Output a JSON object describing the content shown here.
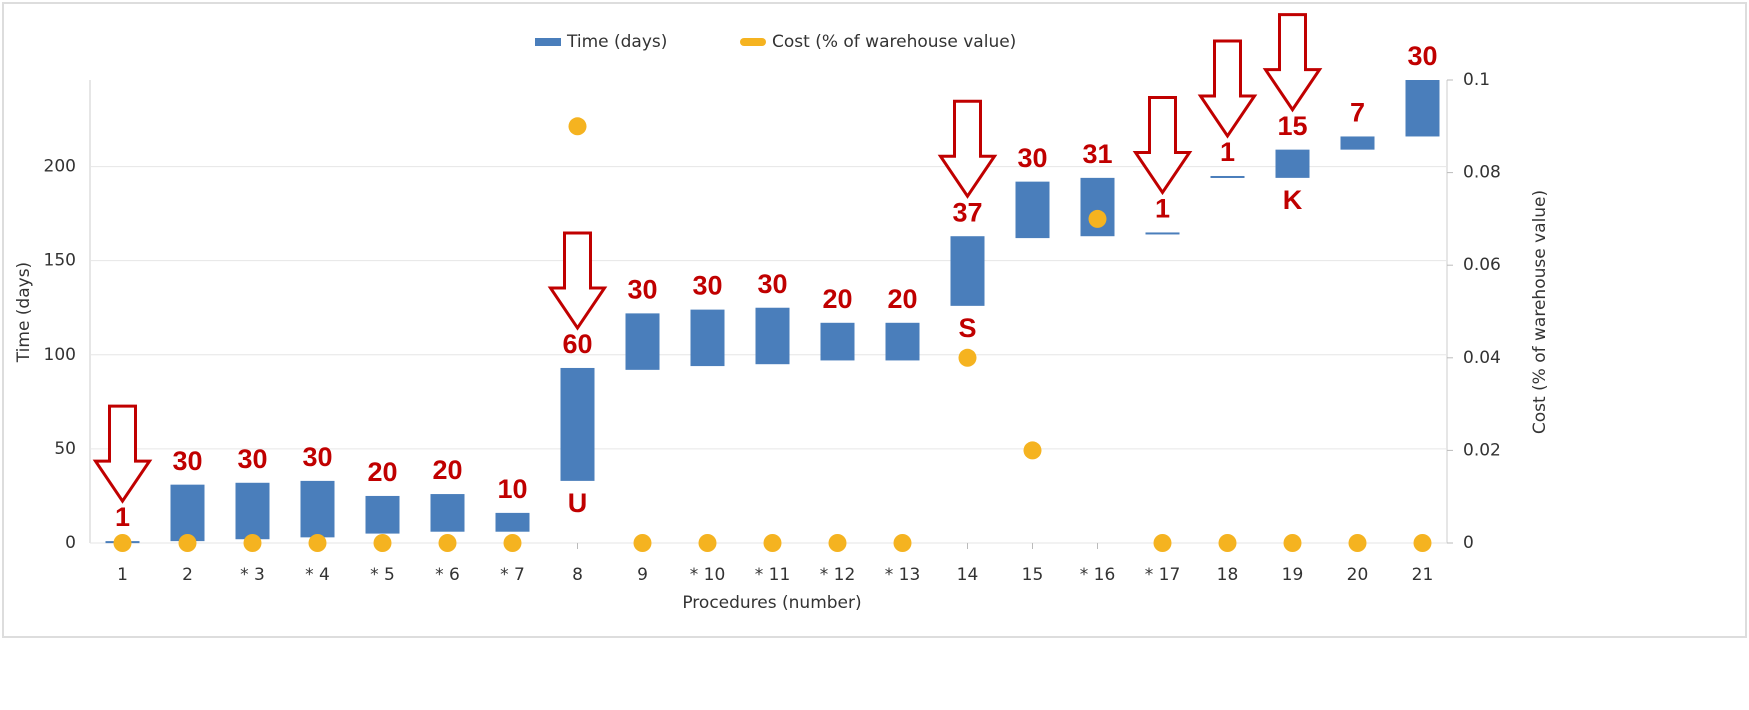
{
  "chart_data": {
    "type": "floating-bar",
    "x_label": "Procedures (number)",
    "y_label": "Time (days)",
    "y2_label": "Cost (% of warehouse value)",
    "categories": [
      "1",
      "2",
      "* 3",
      "* 4",
      "* 5",
      "* 6",
      "* 7",
      "8",
      "9",
      "* 10",
      "* 11",
      "* 12",
      "* 13",
      "14",
      "15",
      "* 16",
      "* 17",
      "18",
      "19",
      "20",
      "21"
    ],
    "series": [
      {
        "name": "Time (days)",
        "color": "#4a7ebb",
        "starts": [
          0,
          1,
          2,
          3,
          5,
          6,
          6,
          33,
          92,
          94,
          95,
          97,
          97,
          126,
          162,
          163,
          164,
          194,
          194,
          209,
          216
        ],
        "values": [
          1,
          30,
          30,
          30,
          20,
          20,
          10,
          60,
          30,
          30,
          30,
          20,
          20,
          37,
          30,
          31,
          1,
          1,
          15,
          7,
          30
        ]
      },
      {
        "name": "Cost (% of warehouse value)",
        "color": "#f5b320",
        "axis": "y2",
        "values": [
          0,
          0,
          0,
          0,
          0,
          0,
          0,
          0.09,
          0,
          0,
          0,
          0,
          0,
          0.04,
          0.02,
          0.07,
          0,
          0,
          0,
          0,
          0
        ]
      }
    ],
    "markers": [
      null,
      null,
      null,
      null,
      null,
      null,
      null,
      "U",
      null,
      null,
      null,
      null,
      null,
      "S",
      null,
      null,
      null,
      null,
      "K",
      null,
      null
    ],
    "ylim": [
      0,
      246
    ],
    "yticks": [
      0,
      50,
      100,
      150,
      200
    ],
    "y2lim": [
      0,
      0.1
    ],
    "y2ticks": [
      0,
      0.02,
      0.04,
      0.06,
      0.08,
      0.1
    ],
    "grid": true,
    "legend": "top"
  }
}
